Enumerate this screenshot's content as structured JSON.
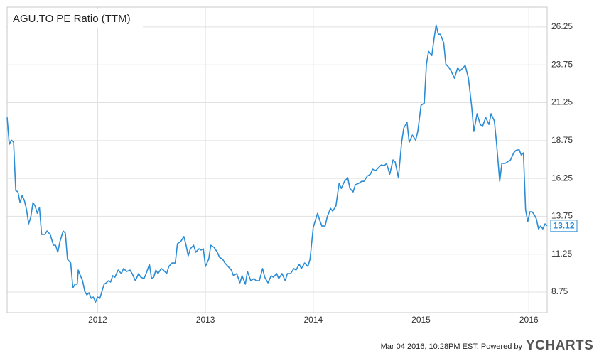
{
  "chart_data": {
    "type": "line",
    "title": "AGU.TO PE Ratio (TTM)",
    "footer": "Mar 04 2016, 10:28PM EST.  Powered by",
    "logo": "YCHARTS",
    "x": [
      2011.16,
      2011.18,
      2011.2,
      2011.22,
      2011.24,
      2011.26,
      2011.28,
      2011.3,
      2011.32,
      2011.34,
      2011.36,
      2011.38,
      2011.4,
      2011.42,
      2011.44,
      2011.46,
      2011.48,
      2011.51,
      2011.53,
      2011.56,
      2011.59,
      2011.61,
      2011.63,
      2011.65,
      2011.68,
      2011.7,
      2011.72,
      2011.75,
      2011.77,
      2011.79,
      2011.81,
      2011.82,
      2011.84,
      2011.86,
      2011.88,
      2011.9,
      2011.92,
      2011.94,
      2011.96,
      2011.98,
      2012.0,
      2012.02,
      2012.04,
      2012.06,
      2012.08,
      2012.1,
      2012.12,
      2012.14,
      2012.16,
      2012.19,
      2012.22,
      2012.24,
      2012.27,
      2012.3,
      2012.32,
      2012.35,
      2012.38,
      2012.4,
      2012.43,
      2012.45,
      2012.48,
      2012.5,
      2012.52,
      2012.54,
      2012.56,
      2012.59,
      2012.61,
      2012.64,
      2012.66,
      2012.69,
      2012.72,
      2012.74,
      2012.77,
      2012.8,
      2012.82,
      2012.84,
      2012.86,
      2012.89,
      2012.91,
      2012.94,
      2012.96,
      2012.98,
      2013.0,
      2013.03,
      2013.05,
      2013.08,
      2013.11,
      2013.13,
      2013.16,
      2013.18,
      2013.21,
      2013.24,
      2013.26,
      2013.29,
      2013.32,
      2013.34,
      2013.37,
      2013.39,
      2013.42,
      2013.45,
      2013.47,
      2013.5,
      2013.53,
      2013.55,
      2013.58,
      2013.61,
      2013.63,
      2013.66,
      2013.68,
      2013.71,
      2013.74,
      2013.76,
      2013.79,
      2013.82,
      2013.84,
      2013.87,
      2013.89,
      2013.92,
      2013.95,
      2013.97,
      2014.0,
      2014.02,
      2014.04,
      2014.06,
      2014.08,
      2014.11,
      2014.13,
      2014.16,
      2014.18,
      2014.21,
      2014.24,
      2014.26,
      2014.29,
      2014.32,
      2014.34,
      2014.37,
      2014.39,
      2014.42,
      2014.45,
      2014.47,
      2014.5,
      2014.53,
      2014.55,
      2014.58,
      2014.61,
      2014.63,
      2014.66,
      2014.68,
      2014.71,
      2014.74,
      2014.76,
      2014.79,
      2014.82,
      2014.84,
      2014.87,
      2014.89,
      2014.92,
      2014.95,
      2014.97,
      2015.0,
      2015.03,
      2015.05,
      2015.07,
      2015.1,
      2015.12,
      2015.14,
      2015.16,
      2015.18,
      2015.21,
      2015.23,
      2015.26,
      2015.28,
      2015.31,
      2015.34,
      2015.36,
      2015.39,
      2015.41,
      2015.44,
      2015.47,
      2015.49,
      2015.52,
      2015.55,
      2015.57,
      2015.6,
      2015.63,
      2015.65,
      2015.68,
      2015.7,
      2015.73,
      2015.75,
      2015.78,
      2015.8,
      2015.83,
      2015.86,
      2015.88,
      2015.91,
      2015.93,
      2015.95,
      2015.97,
      2015.99,
      2016.01,
      2016.03,
      2016.05,
      2016.07,
      2016.09,
      2016.11,
      2016.13,
      2016.15,
      2016.17
    ],
    "series": [
      {
        "name": "AGU.TO PE Ratio (TTM)",
        "color": "#2b8cd6",
        "values": [
          20.28,
          18.5,
          18.78,
          18.64,
          15.45,
          15.36,
          14.66,
          15.13,
          14.8,
          14.19,
          13.25,
          13.72,
          14.66,
          14.42,
          13.95,
          14.33,
          12.55,
          12.55,
          12.78,
          12.55,
          11.84,
          11.84,
          11.38,
          12.08,
          12.78,
          12.64,
          10.91,
          10.67,
          9.03,
          9.27,
          9.27,
          10.2,
          9.83,
          9.5,
          8.8,
          8.56,
          8.7,
          8.33,
          8.42,
          8.09,
          8.42,
          8.33,
          8.8,
          9.27,
          9.36,
          9.5,
          9.41,
          9.83,
          9.73,
          10.2,
          9.97,
          10.3,
          10.11,
          10.2,
          9.97,
          9.5,
          9.97,
          9.73,
          9.64,
          9.97,
          10.58,
          9.64,
          9.73,
          10.2,
          9.97,
          10.3,
          10.2,
          9.97,
          10.44,
          10.67,
          10.67,
          11.94,
          12.08,
          12.41,
          11.84,
          11.14,
          11.61,
          11.84,
          11.38,
          11.61,
          11.52,
          11.61,
          10.44,
          10.91,
          11.84,
          11.7,
          11.38,
          11.05,
          10.91,
          10.67,
          10.44,
          10.2,
          9.83,
          9.97,
          9.36,
          9.83,
          9.27,
          10.11,
          9.5,
          9.64,
          9.5,
          9.5,
          10.3,
          9.73,
          9.36,
          9.83,
          9.73,
          9.97,
          9.64,
          9.97,
          9.5,
          9.97,
          9.97,
          10.3,
          10.2,
          10.58,
          10.3,
          10.67,
          10.44,
          10.91,
          13.02,
          13.49,
          13.95,
          13.49,
          13.11,
          13.11,
          13.72,
          14.28,
          14.09,
          14.42,
          15.92,
          15.59,
          16.06,
          16.3,
          15.59,
          15.36,
          15.83,
          15.92,
          16.06,
          16.06,
          16.39,
          16.53,
          16.86,
          16.77,
          17.0,
          17.14,
          17.09,
          17.24,
          16.53,
          17.47,
          17.33,
          16.3,
          18.64,
          19.58,
          19.95,
          18.64,
          19.11,
          18.78,
          19.35,
          21.08,
          21.22,
          23.8,
          24.64,
          24.36,
          25.44,
          26.38,
          25.77,
          25.77,
          25.21,
          23.8,
          23.56,
          23.33,
          22.86,
          23.56,
          23.33,
          23.56,
          23.71,
          22.86,
          20.99,
          19.35,
          20.52,
          19.81,
          19.67,
          20.28,
          19.81,
          20.52,
          20.05,
          18.64,
          16.06,
          17.24,
          17.24,
          17.33,
          17.47,
          17.94,
          18.1,
          18.15,
          17.8,
          17.94,
          14.19,
          13.39,
          14.05,
          14.05,
          13.86,
          13.58,
          12.92,
          13.11,
          12.92,
          13.25,
          13.12
        ]
      }
    ],
    "annotations": [
      {
        "text": "13.12",
        "x": 2016.17,
        "y": 13.12
      }
    ],
    "xlim": [
      2011.16,
      2016.17
    ],
    "xticks": [
      2012,
      2013,
      2014,
      2015,
      2016
    ],
    "ylim": [
      7.39,
      27.56
    ],
    "yticks": [
      8.75,
      11.25,
      13.75,
      16.25,
      18.75,
      21.25,
      23.75,
      26.25
    ],
    "grid": true
  }
}
